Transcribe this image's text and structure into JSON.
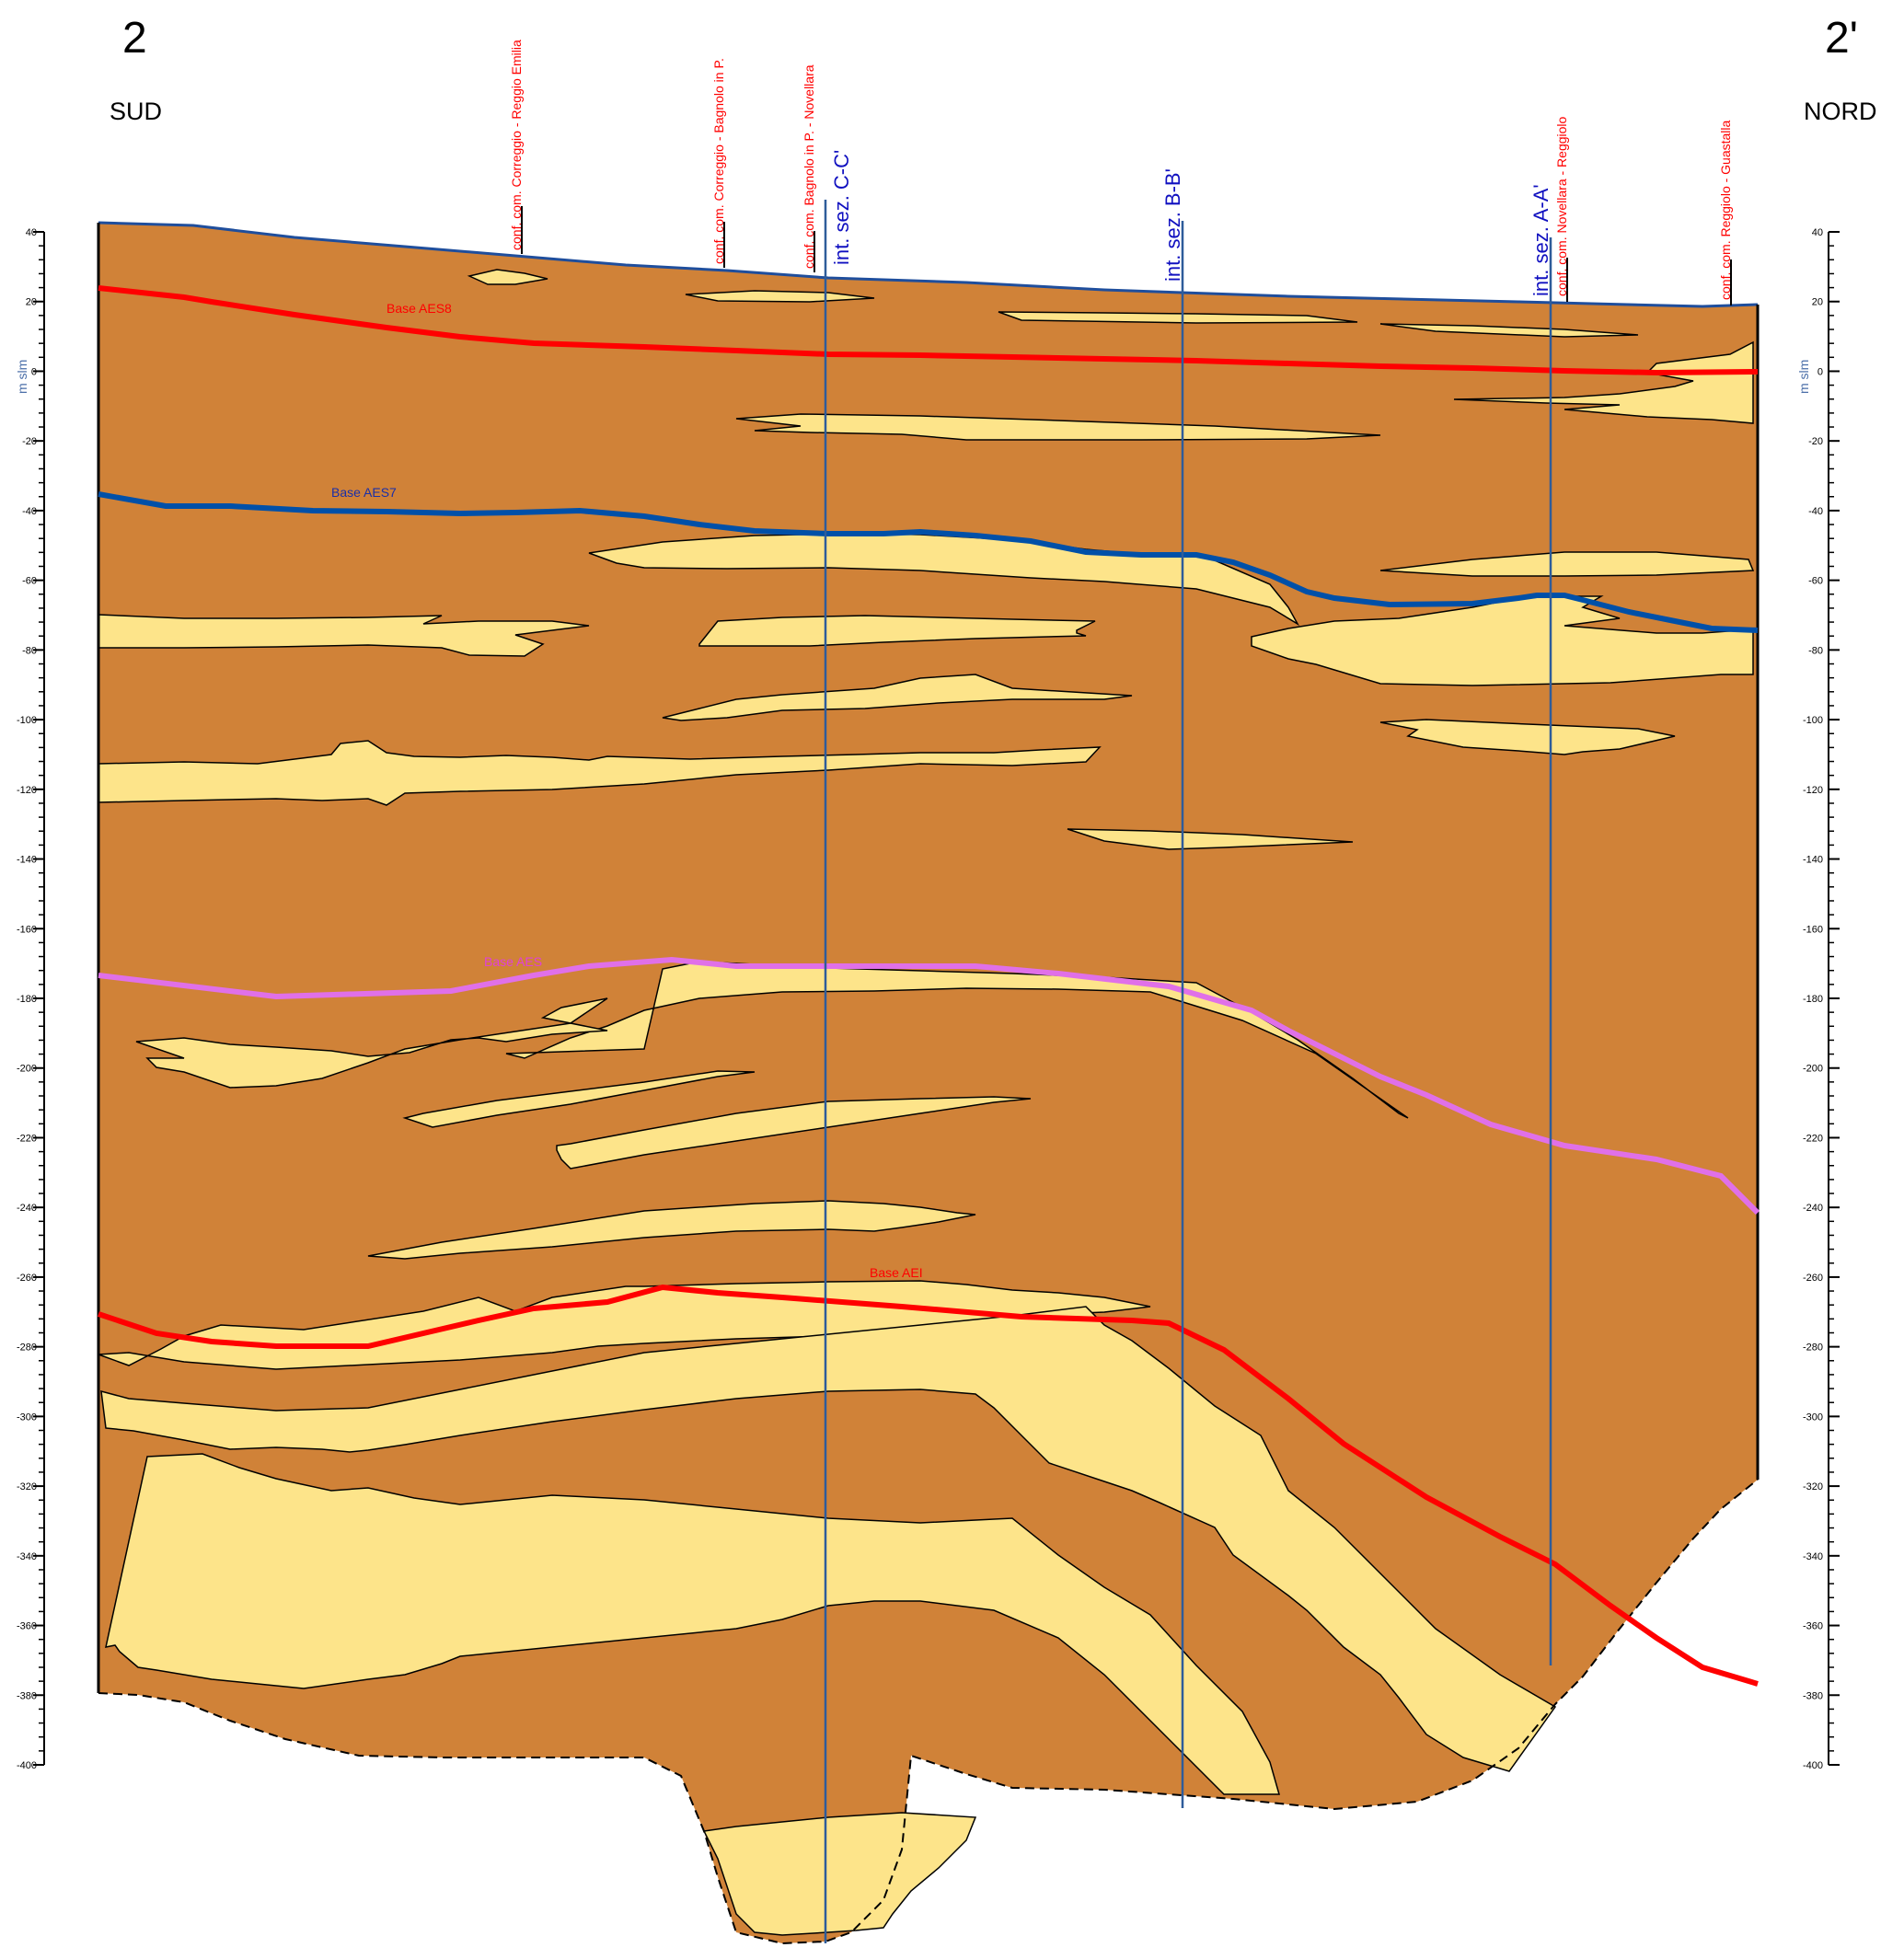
{
  "header": {
    "left_number": "2",
    "right_number": "2'",
    "left_direction": "SUD",
    "right_direction": "NORD"
  },
  "axis": {
    "unit_label": "m slm",
    "ticks": [
      "40",
      "20",
      "0",
      "-20",
      "-40",
      "-60",
      "-80",
      "-100",
      "-120",
      "-140",
      "-160",
      "-180",
      "-200",
      "-220",
      "-240",
      "-260",
      "-280",
      "-300",
      "-320",
      "-340",
      "-360",
      "-380",
      "-400"
    ],
    "tick_values": [
      40,
      20,
      0,
      -20,
      -40,
      -60,
      -80,
      -100,
      -120,
      -140,
      -160,
      -180,
      -200,
      -220,
      -240,
      -260,
      -280,
      -300,
      -320,
      -340,
      -360,
      -380,
      -400
    ]
  },
  "municipal_boundaries": [
    "conf. com. Correggio - Reggio Emilia",
    "conf. com. Correggio - Bagnolo in P.",
    "conf. com. Bagnolo in P. - Novellara",
    "conf. com. Novellara - Reggiolo",
    "conf. com. Reggiolo - Guastalla"
  ],
  "section_intersections": [
    "int. sez. C-C'",
    "int. sez. B-B'",
    "int. sez. A-A'"
  ],
  "horizons": [
    {
      "name": "Base AES8",
      "color": "#ff0000"
    },
    {
      "name": "Base AES7",
      "color": "#0050a8"
    },
    {
      "name": "Base AES",
      "color": "#e070e8"
    },
    {
      "name": "Base AEI",
      "color": "#ff0000"
    }
  ],
  "colors": {
    "fine_sediment": "#d08238",
    "coarse_sediment": "#fde48a",
    "topography": "#1f4e9c",
    "boundary_label": "#ff0000",
    "intersection_label": "#1010c0",
    "intersection_line": "#2e5c9a",
    "axis_unit": "#4a6ea8"
  }
}
